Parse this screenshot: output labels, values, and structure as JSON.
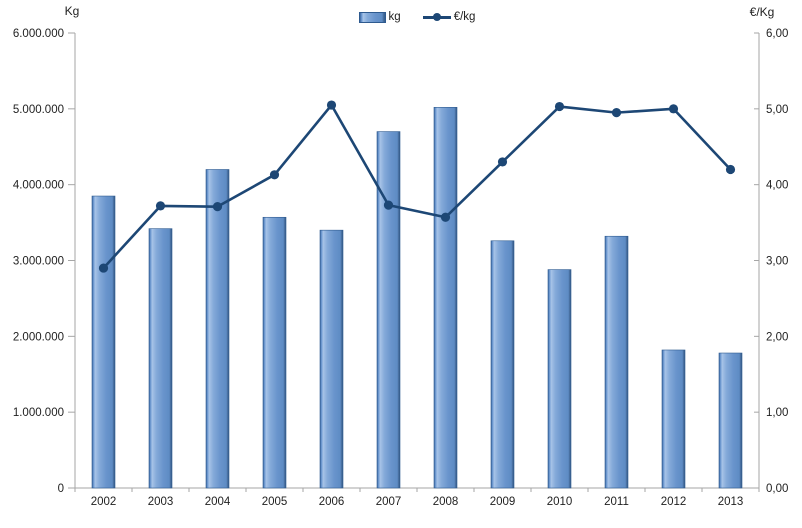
{
  "axes": {
    "left_title": "Kg",
    "right_title": "€/Kg",
    "left_tick_labels": [
      "6.000.000",
      "5.000.000",
      "4.000.000",
      "3.000.000",
      "2.000.000",
      "1.000.000",
      "0"
    ],
    "right_tick_labels": [
      "6,00",
      "5,00",
      "4,00",
      "3,00",
      "2,00",
      "1,00",
      "0,00"
    ]
  },
  "legend": {
    "bar_label": "kg",
    "line_label": "€/kg"
  },
  "colors": {
    "bar_main": "#6994cc",
    "bar_edge_dark": "#3b66a0",
    "bar_highlight": "#a7c3e7",
    "bar_border": "#2e5a8f",
    "line": "#1d4775",
    "axis_line": "#a6a6a6",
    "text": "#1f1f1f"
  },
  "chart_data": {
    "type": "bar",
    "subtype": "bar+line-combo",
    "categories": [
      "2002",
      "2003",
      "2004",
      "2005",
      "2006",
      "2007",
      "2008",
      "2009",
      "2010",
      "2011",
      "2012",
      "2013"
    ],
    "series": [
      {
        "name": "kg",
        "type": "bar",
        "axis": "left",
        "values": [
          3850000,
          3420000,
          4200000,
          3570000,
          3400000,
          4700000,
          5020000,
          3260000,
          2880000,
          3320000,
          1820000,
          1780000
        ]
      },
      {
        "name": "€/kg",
        "type": "line",
        "axis": "right",
        "values": [
          2.9,
          3.72,
          3.71,
          4.13,
          5.05,
          3.73,
          3.57,
          4.3,
          5.03,
          4.95,
          5.0,
          4.2
        ]
      }
    ],
    "left_axis": {
      "label": "Kg",
      "range": [
        0,
        6000000
      ],
      "tick_step": 1000000
    },
    "right_axis": {
      "label": "€/Kg",
      "range": [
        0,
        6
      ],
      "tick_step": 1
    },
    "grid": false,
    "legend_position": "top-center"
  }
}
